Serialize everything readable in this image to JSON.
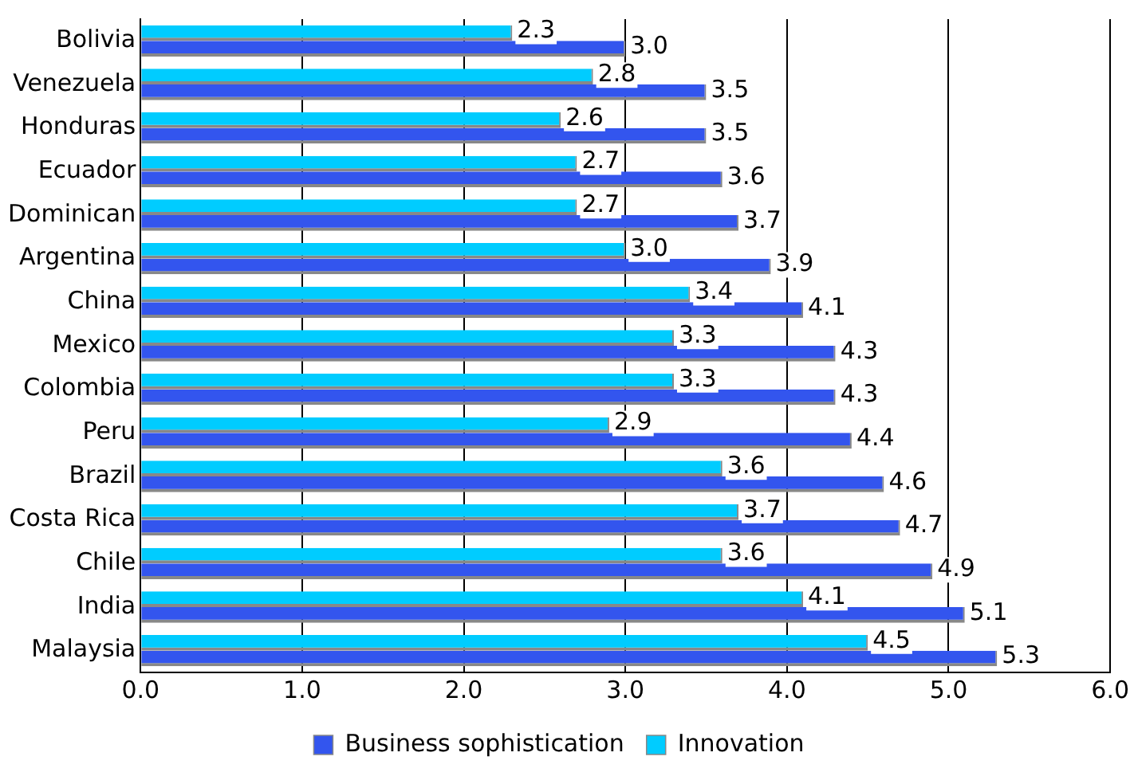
{
  "chart_data": {
    "type": "bar",
    "orientation": "horizontal",
    "categories": [
      "Bolivia",
      "Venezuela",
      "Honduras",
      "Ecuador",
      "Dominican",
      "Argentina",
      "China",
      "Mexico",
      "Colombia",
      "Peru",
      "Brazil",
      "Costa Rica",
      "Chile",
      "India",
      "Malaysia"
    ],
    "series": [
      {
        "name": "Business sophistication",
        "color": "#3355ee",
        "values": [
          3.0,
          3.5,
          3.5,
          3.6,
          3.7,
          3.9,
          4.1,
          4.3,
          4.3,
          4.4,
          4.6,
          4.7,
          4.9,
          5.1,
          5.3
        ],
        "value_labels": [
          "3.0",
          "3.5",
          "3.5",
          "3.6",
          "3.7",
          "3.9",
          "4.1",
          "4.3",
          "4.3",
          "4.4",
          "4.6",
          "4.7",
          "4.9",
          "5.1",
          "5.3"
        ]
      },
      {
        "name": "Innovation",
        "color": "#00ccff",
        "values": [
          2.3,
          2.8,
          2.6,
          2.7,
          2.7,
          3.0,
          3.4,
          3.3,
          3.3,
          2.9,
          3.6,
          3.7,
          3.6,
          4.1,
          4.5
        ],
        "value_labels": [
          "2.3",
          "2.8",
          "2.6",
          "2.7",
          "2.7",
          "3.0",
          "3.4",
          "3.3",
          "3.3",
          "2.9",
          "3.6",
          "3.7",
          "3.6",
          "4.1",
          "4.5"
        ]
      }
    ],
    "xlim": [
      0,
      6
    ],
    "xticks": [
      {
        "value": 0,
        "label": "0.0"
      },
      {
        "value": 1,
        "label": "1.0"
      },
      {
        "value": 2,
        "label": "2.0"
      },
      {
        "value": 3,
        "label": "3.0"
      },
      {
        "value": 4,
        "label": "4.0"
      },
      {
        "value": 5,
        "label": "5.0"
      },
      {
        "value": 6,
        "label": "6.0"
      }
    ],
    "grid": "x",
    "legend": "bottom"
  }
}
